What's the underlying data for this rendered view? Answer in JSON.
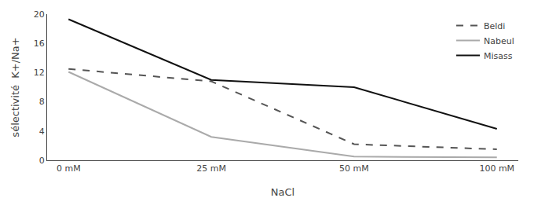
{
  "chart_data": {
    "type": "line",
    "xlabel": "NaCl",
    "ylabel": "sélectivité  K+/Na+",
    "categories": [
      "0 mM",
      "25 mM",
      "50 mM",
      "100 mM"
    ],
    "series": [
      {
        "name": "Beldi",
        "color": "#555555",
        "line_style": "dashed",
        "values": [
          12.5,
          10.8,
          2.2,
          1.5
        ]
      },
      {
        "name": "Nabeul",
        "color": "#aaaaaa",
        "line_style": "solid",
        "values": [
          12.1,
          3.2,
          0.5,
          0.4
        ]
      },
      {
        "name": "Misass",
        "color": "#111111",
        "line_style": "solid",
        "values": [
          19.3,
          11.0,
          10.0,
          4.3
        ]
      }
    ],
    "ylim": [
      0,
      20
    ],
    "yticks": [
      0,
      4,
      8,
      12,
      16,
      20
    ],
    "grid": false,
    "legend": "upper right"
  }
}
